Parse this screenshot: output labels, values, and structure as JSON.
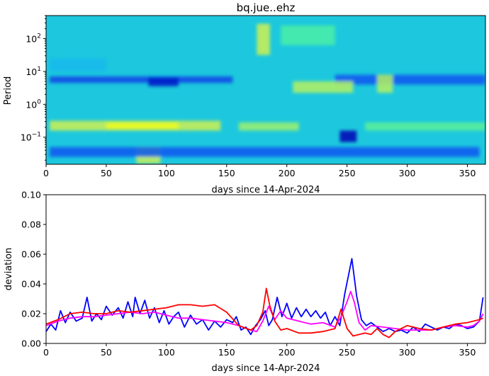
{
  "chart_data": [
    {
      "type": "heatmap",
      "title": "bq.jue..ehz",
      "xlabel": "days since 14-Apr-2024",
      "ylabel": "Period",
      "xlim": [
        0,
        365
      ],
      "ylim": [
        0.015,
        500
      ],
      "yscale": "log",
      "x_ticks": [
        0,
        50,
        100,
        150,
        200,
        250,
        300,
        350
      ],
      "y_ticks": [
        {
          "value": 0.1,
          "base": "10",
          "exp": "−1"
        },
        {
          "value": 1,
          "base": "10",
          "exp": "0"
        },
        {
          "value": 10,
          "base": "10",
          "exp": "1"
        },
        {
          "value": 100,
          "base": "10",
          "exp": "2"
        }
      ],
      "colormap": [
        "#0000b4",
        "#0a50f0",
        "#14b4f0",
        "#28e0c8",
        "#50f0a0",
        "#8cf078",
        "#d2f050",
        "#ffff00"
      ],
      "background_value": 0.35,
      "features": [
        {
          "x": [
            3,
            155
          ],
          "logp": [
            0.65,
            0.85
          ],
          "value": 0.12
        },
        {
          "x": [
            85,
            110
          ],
          "logp": [
            0.55,
            0.8
          ],
          "value": 0.04
        },
        {
          "x": [
            240,
            365
          ],
          "logp": [
            0.6,
            0.9
          ],
          "value": 0.15
        },
        {
          "x": [
            3,
            145
          ],
          "logp": [
            -0.8,
            -0.5
          ],
          "value": 0.85
        },
        {
          "x": [
            50,
            110
          ],
          "logp": [
            -0.75,
            -0.55
          ],
          "value": 0.95
        },
        {
          "x": [
            160,
            210
          ],
          "logp": [
            -0.8,
            -0.55
          ],
          "value": 0.75
        },
        {
          "x": [
            265,
            365
          ],
          "logp": [
            -0.8,
            -0.55
          ],
          "value": 0.6
        },
        {
          "x": [
            244,
            258
          ],
          "logp": [
            -1.15,
            -0.8
          ],
          "value": 0.0
        },
        {
          "x": [
            175,
            186
          ],
          "logp": [
            1.5,
            2.45
          ],
          "value": 0.85
        },
        {
          "x": [
            205,
            255
          ],
          "logp": [
            0.35,
            0.7
          ],
          "value": 0.8
        },
        {
          "x": [
            275,
            288
          ],
          "logp": [
            0.35,
            0.9
          ],
          "value": 0.8
        },
        {
          "x": [
            75,
            95
          ],
          "logp": [
            -1.8,
            -1.3
          ],
          "value": 0.85
        },
        {
          "x": [
            3,
            360
          ],
          "logp": [
            -1.6,
            -1.3
          ],
          "value": 0.15
        },
        {
          "x": [
            195,
            240
          ],
          "logp": [
            1.8,
            2.4
          ],
          "value": 0.55
        },
        {
          "x": [
            3,
            50
          ],
          "logp": [
            1.0,
            1.4
          ],
          "value": 0.3
        }
      ]
    },
    {
      "type": "line",
      "xlabel": "days since 14-Apr-2024",
      "ylabel": "deviation",
      "xlim": [
        0,
        365
      ],
      "ylim": [
        0,
        0.1
      ],
      "x_ticks": [
        0,
        50,
        100,
        150,
        200,
        250,
        300,
        350
      ],
      "y_ticks": [
        "0.00",
        "0.02",
        "0.04",
        "0.06",
        "0.08",
        "0.10"
      ],
      "series": [
        {
          "color": "#0000ff",
          "x": [
            0,
            4,
            8,
            12,
            16,
            20,
            25,
            30,
            34,
            38,
            42,
            46,
            50,
            55,
            60,
            64,
            68,
            72,
            74,
            78,
            82,
            86,
            90,
            94,
            98,
            102,
            106,
            110,
            115,
            120,
            125,
            130,
            135,
            140,
            145,
            150,
            155,
            158,
            162,
            166,
            170,
            174,
            178,
            182,
            185,
            188,
            192,
            196,
            200,
            204,
            208,
            212,
            216,
            220,
            224,
            228,
            232,
            236,
            240,
            244,
            248,
            251,
            254,
            258,
            262,
            266,
            270,
            275,
            280,
            285,
            290,
            295,
            300,
            305,
            310,
            315,
            320,
            325,
            330,
            335,
            340,
            345,
            350,
            355,
            360,
            363
          ],
          "values": [
            0.008,
            0.013,
            0.009,
            0.022,
            0.014,
            0.021,
            0.015,
            0.017,
            0.031,
            0.015,
            0.02,
            0.016,
            0.025,
            0.019,
            0.024,
            0.017,
            0.028,
            0.018,
            0.031,
            0.02,
            0.029,
            0.017,
            0.024,
            0.014,
            0.022,
            0.013,
            0.018,
            0.021,
            0.011,
            0.019,
            0.013,
            0.016,
            0.009,
            0.015,
            0.011,
            0.016,
            0.014,
            0.018,
            0.009,
            0.011,
            0.006,
            0.012,
            0.016,
            0.022,
            0.012,
            0.016,
            0.031,
            0.018,
            0.027,
            0.017,
            0.024,
            0.018,
            0.023,
            0.018,
            0.022,
            0.017,
            0.021,
            0.012,
            0.018,
            0.012,
            0.033,
            0.045,
            0.057,
            0.032,
            0.016,
            0.012,
            0.014,
            0.011,
            0.008,
            0.01,
            0.008,
            0.009,
            0.007,
            0.011,
            0.008,
            0.013,
            0.011,
            0.009,
            0.011,
            0.01,
            0.013,
            0.012,
            0.01,
            0.011,
            0.015,
            0.031
          ]
        },
        {
          "color": "#ff00ff",
          "x": [
            0,
            10,
            20,
            30,
            40,
            50,
            60,
            70,
            80,
            90,
            100,
            110,
            120,
            130,
            140,
            150,
            160,
            170,
            175,
            180,
            185,
            190,
            195,
            200,
            210,
            220,
            230,
            240,
            245,
            250,
            253,
            256,
            260,
            265,
            270,
            280,
            290,
            300,
            310,
            320,
            330,
            340,
            350,
            355,
            360,
            363
          ],
          "values": [
            0.012,
            0.015,
            0.017,
            0.018,
            0.018,
            0.019,
            0.02,
            0.021,
            0.02,
            0.021,
            0.019,
            0.017,
            0.017,
            0.016,
            0.015,
            0.014,
            0.012,
            0.009,
            0.008,
            0.015,
            0.025,
            0.016,
            0.022,
            0.017,
            0.015,
            0.013,
            0.014,
            0.011,
            0.018,
            0.028,
            0.035,
            0.028,
            0.014,
            0.009,
            0.012,
            0.011,
            0.01,
            0.009,
            0.009,
            0.009,
            0.011,
            0.012,
            0.011,
            0.012,
            0.015,
            0.02
          ]
        },
        {
          "color": "#ff0000",
          "x": [
            0,
            10,
            20,
            30,
            40,
            50,
            60,
            70,
            80,
            90,
            100,
            110,
            120,
            130,
            140,
            150,
            160,
            170,
            175,
            180,
            183,
            186,
            190,
            195,
            200,
            210,
            220,
            230,
            240,
            245,
            250,
            255,
            260,
            265,
            270,
            275,
            280,
            285,
            290,
            300,
            310,
            320,
            330,
            340,
            350,
            360,
            363
          ],
          "values": [
            0.013,
            0.016,
            0.02,
            0.021,
            0.02,
            0.02,
            0.022,
            0.021,
            0.022,
            0.023,
            0.024,
            0.026,
            0.026,
            0.025,
            0.026,
            0.021,
            0.012,
            0.009,
            0.012,
            0.021,
            0.037,
            0.025,
            0.015,
            0.009,
            0.01,
            0.007,
            0.007,
            0.008,
            0.01,
            0.023,
            0.01,
            0.005,
            0.006,
            0.007,
            0.006,
            0.01,
            0.006,
            0.004,
            0.008,
            0.012,
            0.01,
            0.009,
            0.011,
            0.013,
            0.014,
            0.016,
            0.017
          ]
        }
      ]
    }
  ]
}
